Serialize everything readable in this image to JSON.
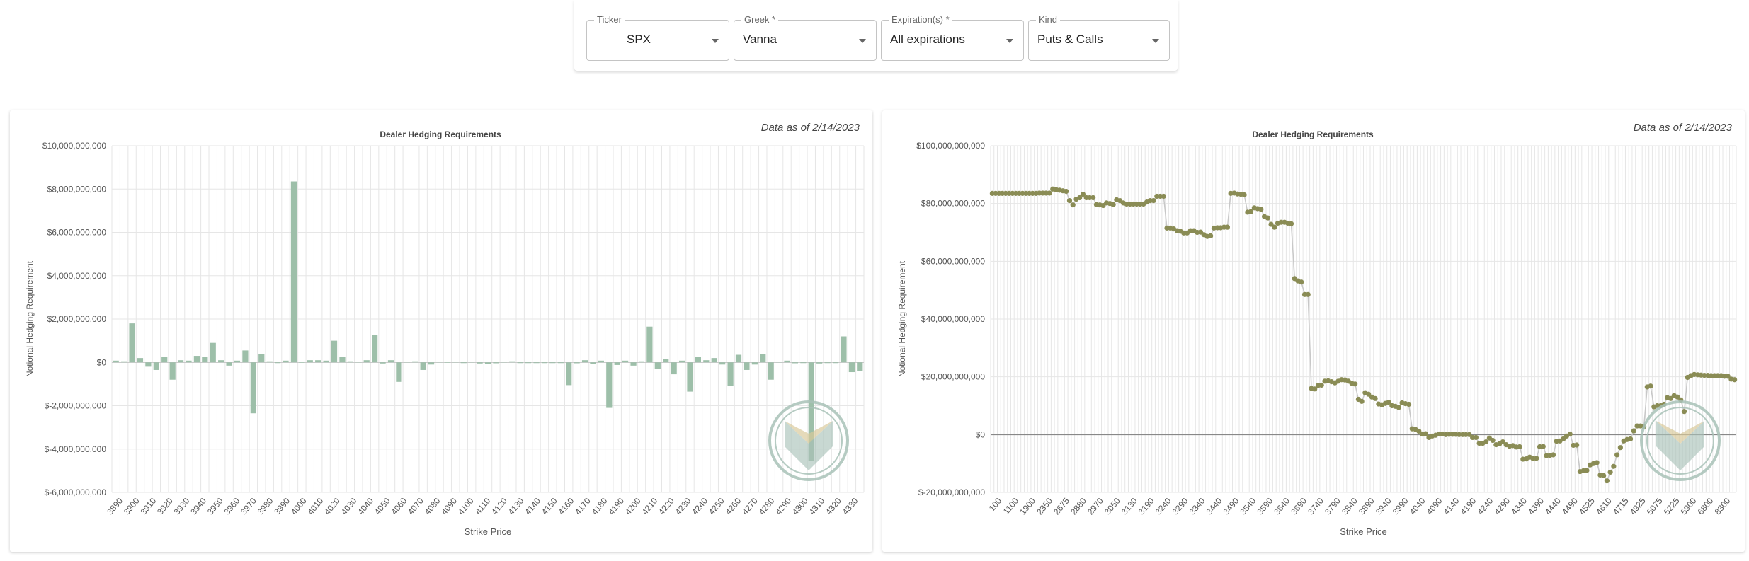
{
  "filters": {
    "ticker": {
      "label": "Ticker",
      "value": "SPX"
    },
    "greek": {
      "label": "Greek *",
      "value": "Vanna"
    },
    "expiration": {
      "label": "Expiration(s) *",
      "value": "All expirations"
    },
    "kind": {
      "label": "Kind",
      "value": "Puts & Calls"
    }
  },
  "colors": {
    "bar": "#9dbfa9",
    "dot": "#8a8c55",
    "line": "#c8c8c8",
    "grid": "#e6e6e6",
    "zero": "#888888",
    "logo": "#a9c2b8"
  },
  "chart_data": [
    {
      "type": "bar",
      "title": "Dealer Hedging Requirements",
      "as_of": "Data as of 2/14/2023",
      "xlabel": "Strike Price",
      "ylabel": "Notional Hedging Requirement",
      "ylim": [
        -6000000000,
        10000000000
      ],
      "yticks": [
        10000000000,
        8000000000,
        6000000000,
        4000000000,
        2000000000,
        0,
        -2000000000,
        -4000000000,
        -6000000000
      ],
      "ytick_labels": [
        "$10,000,000,000",
        "$8,000,000,000",
        "$6,000,000,000",
        "$4,000,000,000",
        "$2,000,000,000",
        "$0",
        "$-2,000,000,000",
        "$-4,000,000,000",
        "$-6,000,000,000"
      ],
      "xtick_labels": [
        "3890",
        "3900",
        "3910",
        "3920",
        "3930",
        "3940",
        "3950",
        "3960",
        "3970",
        "3980",
        "3990",
        "4000",
        "4010",
        "4020",
        "4030",
        "4040",
        "4050",
        "4060",
        "4070",
        "4080",
        "4090",
        "4100",
        "4110",
        "4120",
        "4130",
        "4140",
        "4150",
        "4160",
        "4170",
        "4180",
        "4190",
        "4200",
        "4210",
        "4220",
        "4230",
        "4240",
        "4250",
        "4260",
        "4270",
        "4280",
        "4290",
        "4300",
        "4310",
        "4320",
        "4330"
      ],
      "values": [
        80000000,
        50000000,
        1800000000,
        200000000,
        -200000000,
        -350000000,
        250000000,
        -800000000,
        100000000,
        80000000,
        300000000,
        250000000,
        900000000,
        100000000,
        -150000000,
        80000000,
        550000000,
        -2350000000,
        400000000,
        50000000,
        -30000000,
        80000000,
        8350000000,
        20000000,
        100000000,
        100000000,
        80000000,
        1000000000,
        250000000,
        50000000,
        30000000,
        100000000,
        1250000000,
        -50000000,
        100000000,
        -900000000,
        30000000,
        50000000,
        -350000000,
        -100000000,
        40000000,
        20000000,
        30000000,
        -20000000,
        30000000,
        -50000000,
        -80000000,
        -40000000,
        30000000,
        50000000,
        -20000000,
        0,
        0,
        0,
        0,
        0,
        -1050000000,
        -40000000,
        100000000,
        -80000000,
        80000000,
        -2100000000,
        -120000000,
        80000000,
        -150000000,
        50000000,
        1650000000,
        -300000000,
        150000000,
        -550000000,
        80000000,
        -1350000000,
        250000000,
        100000000,
        200000000,
        -100000000,
        -1100000000,
        350000000,
        -350000000,
        -100000000,
        400000000,
        -800000000,
        40000000,
        80000000,
        -40000000,
        -30000000,
        -4550000000,
        -50000000,
        -30000000,
        -30000000,
        1200000000,
        -450000000,
        -400000000
      ]
    },
    {
      "type": "scatter",
      "title": "Dealer Hedging Requirements",
      "as_of": "Data as of 2/14/2023",
      "xlabel": "Strike Price",
      "ylabel": "Notional Hedging Requirement",
      "ylim": [
        -20000000000,
        100000000000
      ],
      "yticks": [
        100000000000,
        80000000000,
        60000000000,
        40000000000,
        20000000000,
        0,
        -20000000000
      ],
      "ytick_labels": [
        "$100,000,000,000",
        "$80,000,000,000",
        "$60,000,000,000",
        "$40,000,000,000",
        "$20,000,000,000",
        "$0",
        "$-20,000,000,000"
      ],
      "xtick_labels": [
        "100",
        "1100",
        "1900",
        "2350",
        "2675",
        "2880",
        "2970",
        "3050",
        "3130",
        "3190",
        "3240",
        "3290",
        "3340",
        "3440",
        "3490",
        "3540",
        "3590",
        "3640",
        "3690",
        "3740",
        "3790",
        "3840",
        "3890",
        "3940",
        "3990",
        "4040",
        "4090",
        "4140",
        "4190",
        "4240",
        "4290",
        "4340",
        "4390",
        "4440",
        "4490",
        "4525",
        "4610",
        "4715",
        "4925",
        "5075",
        "5225",
        "5900",
        "6800",
        "8300"
      ],
      "values": [
        83.5,
        83.5,
        83.5,
        83.5,
        83.5,
        83.5,
        83.5,
        83.5,
        83.5,
        83.5,
        83.5,
        83.5,
        83.5,
        83.5,
        83.6,
        83.6,
        83.6,
        83.6,
        85,
        84.8,
        84.6,
        84.4,
        84.2,
        81,
        79.5,
        81.5,
        82,
        83.2,
        82,
        82,
        82,
        79.6,
        79.5,
        79.3,
        80.2,
        80,
        79.6,
        81.3,
        81,
        80.2,
        79.8,
        79.8,
        79.8,
        79.8,
        79.8,
        79.8,
        80.5,
        81,
        81,
        82.5,
        82.5,
        82.5,
        71.5,
        71.5,
        71.2,
        70.6,
        70.4,
        69.8,
        69.8,
        70.6,
        70.6,
        70,
        70.1,
        69.2,
        68.6,
        68.8,
        71.5,
        71.6,
        71.6,
        71.8,
        71.8,
        83.5,
        83.6,
        83.3,
        83.2,
        83,
        77,
        77.2,
        78.5,
        78.2,
        78,
        75.5,
        75,
        72.8,
        71.8,
        73.2,
        73.5,
        73.5,
        73.2,
        73,
        54,
        53.2,
        52.8,
        48.5,
        48.5,
        16,
        15.8,
        17,
        17.1,
        18.5,
        18.6,
        18.3,
        17.9,
        18.5,
        19,
        18.9,
        18.5,
        17.8,
        17.5,
        12.2,
        11.5,
        14.5,
        14,
        13,
        12.5,
        10.6,
        10.3,
        10.8,
        11.2,
        10,
        9.8,
        9.4,
        11,
        10.7,
        10.5,
        2,
        1.8,
        1.2,
        0.2,
        0.3,
        -1,
        -0.5,
        -0.2,
        0.2,
        0.2,
        0,
        0.1,
        0.1,
        0.1,
        0,
        0,
        0,
        0,
        -1,
        -1,
        -3,
        -3,
        -2.5,
        -1.2,
        -2,
        -3.5,
        -3.2,
        -2.5,
        -3.5,
        -4,
        -3.8,
        -4.3,
        -4.2,
        -8.5,
        -8.4,
        -7.8,
        -8.3,
        -8.2,
        -4.2,
        -4.1,
        -7.3,
        -7.2,
        -7,
        -2.3,
        -2.2,
        -1.5,
        -0.5,
        0.2,
        -3.7,
        -3.6,
        -12.8,
        -12.5,
        -12.4,
        -10.5,
        -10,
        -9.7,
        -14,
        -14.2,
        -16,
        -13,
        -11,
        -7,
        -4.5,
        -2.2,
        -1.7,
        -1.5,
        1.3,
        3,
        3,
        2.8,
        16.5,
        16.8,
        9.6,
        10,
        10,
        10.5,
        12.8,
        12.5,
        13.5,
        13,
        12,
        8,
        19.8,
        20.4,
        20.8,
        20.7,
        20.6,
        20.5,
        20.5,
        20.4,
        20.4,
        20.4,
        20.4,
        20.2,
        20.2,
        19.2,
        19
      ]
    }
  ]
}
